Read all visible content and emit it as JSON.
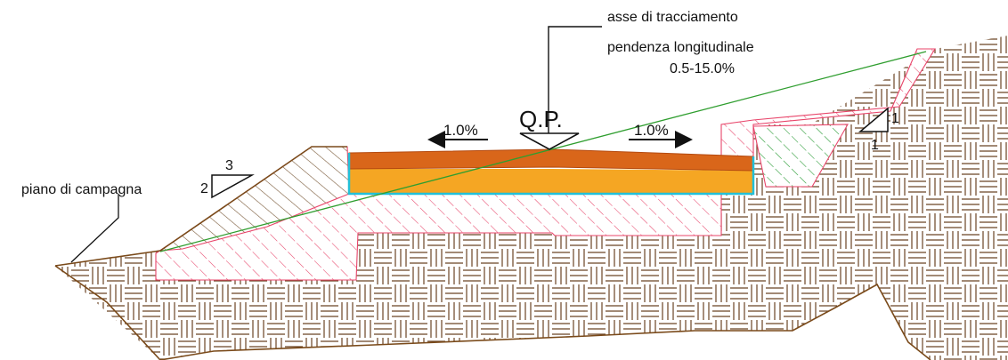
{
  "labels": {
    "axis_title": "asse di tracciamento",
    "slope_title": "pendenza longitudinale",
    "slope_range": "0.5-15.0%",
    "qp": "Q.P.",
    "cross_slope_left": "1.0%",
    "cross_slope_right": "1.0%",
    "ground": "piano di campagna"
  },
  "slope_ratios": {
    "fill_left": {
      "horizontal": "3",
      "vertical": "2"
    },
    "cut_right": {
      "horizontal": "1",
      "vertical": "1"
    }
  },
  "colors": {
    "terrain_line": "#7a4a1a",
    "terrain_hatch": "#6b4423",
    "fill_hatch": "#e8456a",
    "cut_hatch": "#2e9e3a",
    "road_top": "#d9661a",
    "road_base": "#f5a623",
    "road_outline": "#22c0d8",
    "ground_line": "#2f9e2f",
    "fill_body_hatch": "#7a5a3a"
  }
}
